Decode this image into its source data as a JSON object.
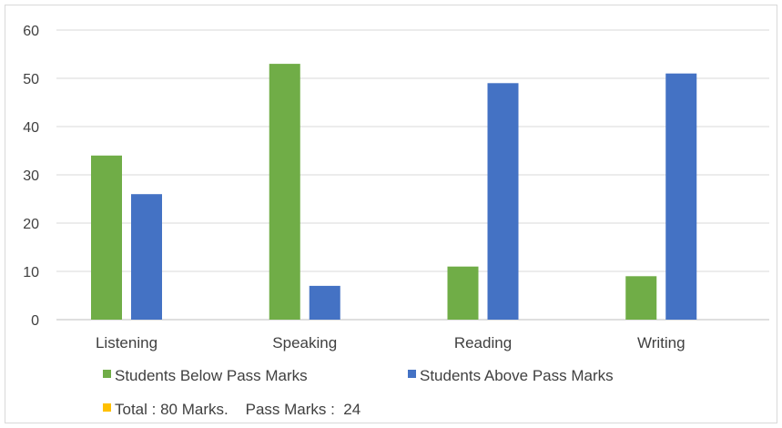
{
  "chart_data": {
    "type": "bar",
    "categories": [
      "Listening",
      "Speaking",
      "Reading",
      "Writing"
    ],
    "series": [
      {
        "name": "Students Below Pass Marks",
        "values": [
          34,
          53,
          11,
          9
        ],
        "color": "#70ad47"
      },
      {
        "name": "Students Above Pass Marks",
        "values": [
          26,
          7,
          49,
          51
        ],
        "color": "#4472c4"
      }
    ],
    "ylim": [
      0,
      60
    ],
    "yticks": [
      0,
      10,
      20,
      30,
      40,
      50,
      60
    ],
    "grid": true,
    "legend_position": "bottom",
    "note": {
      "text": "Total : 80 Marks.    Pass Marks :  24",
      "color": "#ffc000"
    }
  }
}
